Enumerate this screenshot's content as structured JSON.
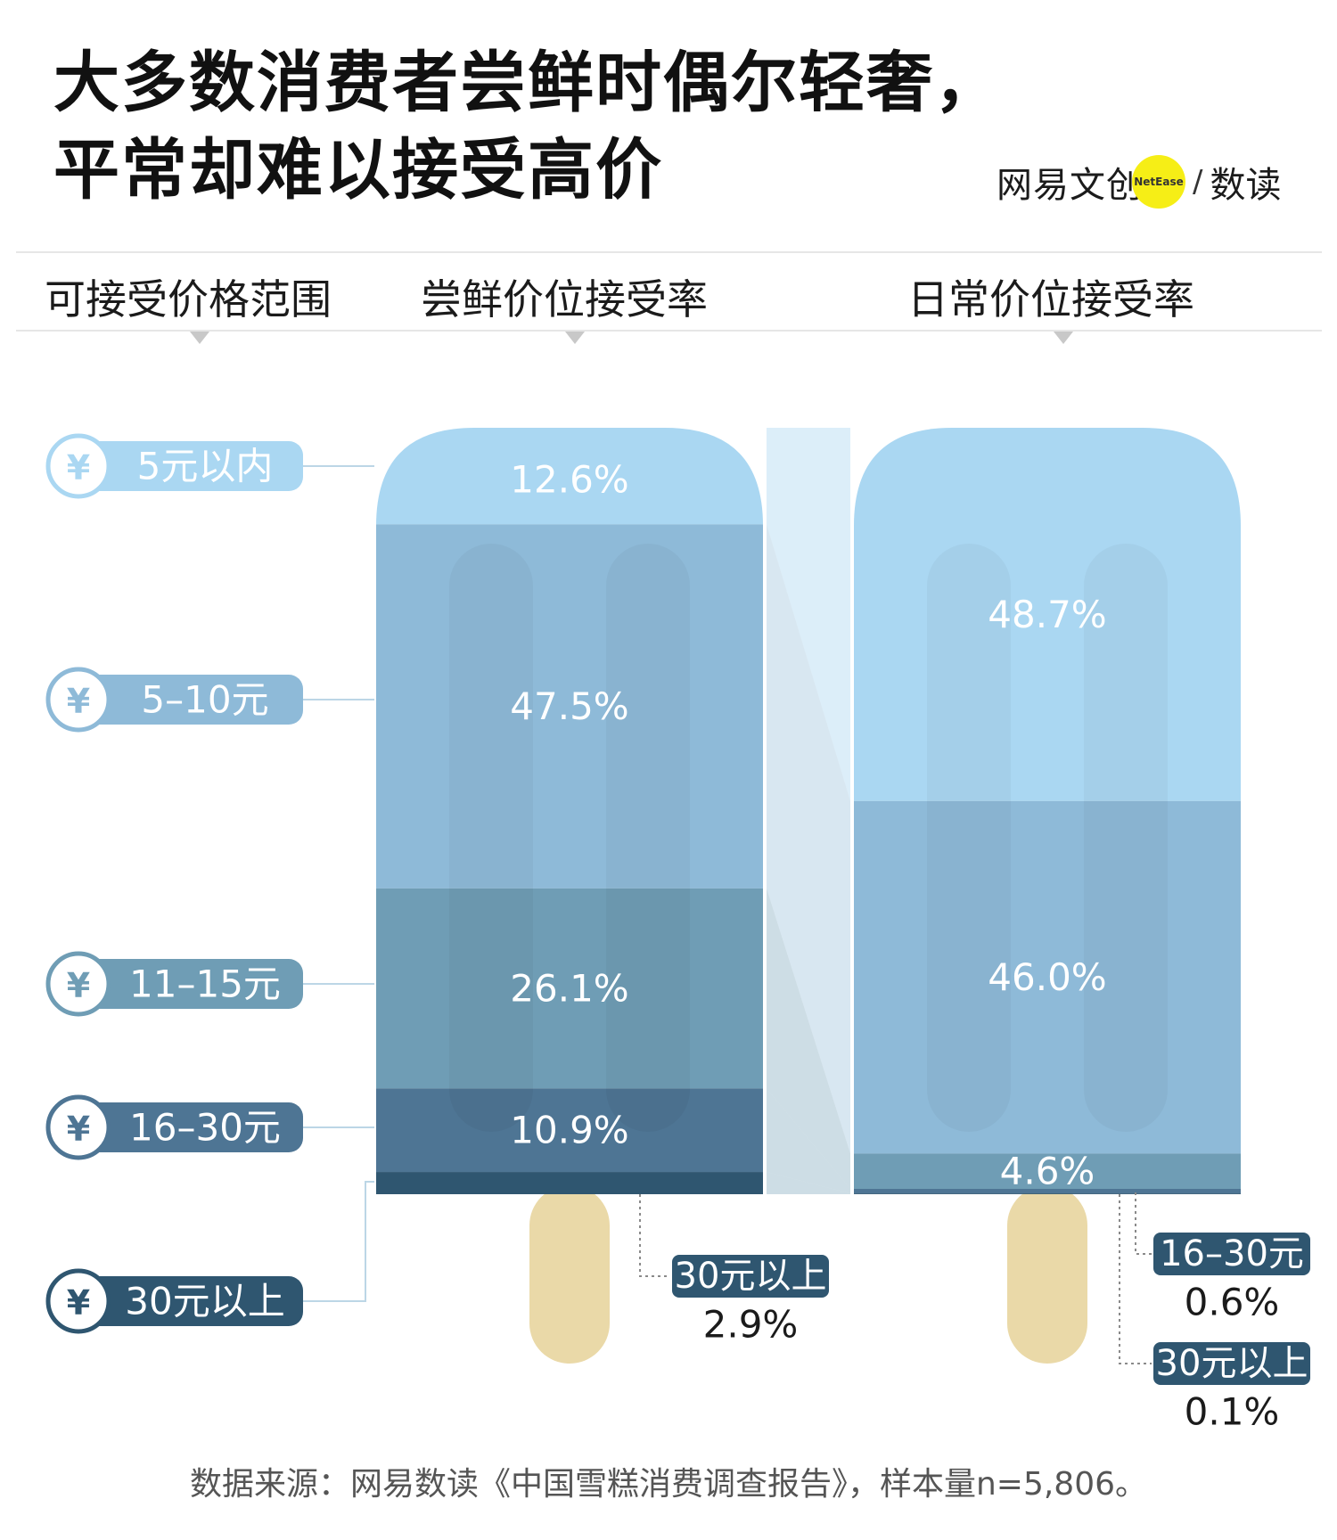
{
  "title": {
    "line1": "大多数消费者尝鲜时偶尔轻奢，",
    "line2": "平常却难以接受高价"
  },
  "logo": {
    "left": "网易文创",
    "badge": "NetEase",
    "slash": "/",
    "right": "数读"
  },
  "headers": {
    "range": "可接受价格范围",
    "trial": "尝鲜价位接受率",
    "daily": "日常价位接受率"
  },
  "source": "数据来源：网易数读《中国雪糕消费调查报告》，样本量n=5,806。",
  "chart_data": {
    "type": "bar",
    "stacked": true,
    "orientation": "vertical",
    "categories": [
      "5元以内",
      "5–10元",
      "11–15元",
      "16–30元",
      "30元以上"
    ],
    "currency_icon": "¥",
    "series": [
      {
        "name": "尝鲜价位接受率",
        "values": [
          12.6,
          47.5,
          26.1,
          10.9,
          2.9
        ],
        "labels": [
          "12.6%",
          "47.5%",
          "26.1%",
          "10.9%",
          "2.9%"
        ]
      },
      {
        "name": "日常价位接受率",
        "values": [
          48.7,
          46.0,
          4.6,
          0.6,
          0.1
        ],
        "labels": [
          "48.7%",
          "46.0%",
          "4.6%",
          "0.6%",
          "0.1%"
        ]
      }
    ],
    "colors": [
      "#aad7f2",
      "#8ebad8",
      "#6f9db5",
      "#4e7594",
      "#2f5670"
    ],
    "stick_color": "#ead9a8",
    "connector_color": "#dceef9"
  }
}
